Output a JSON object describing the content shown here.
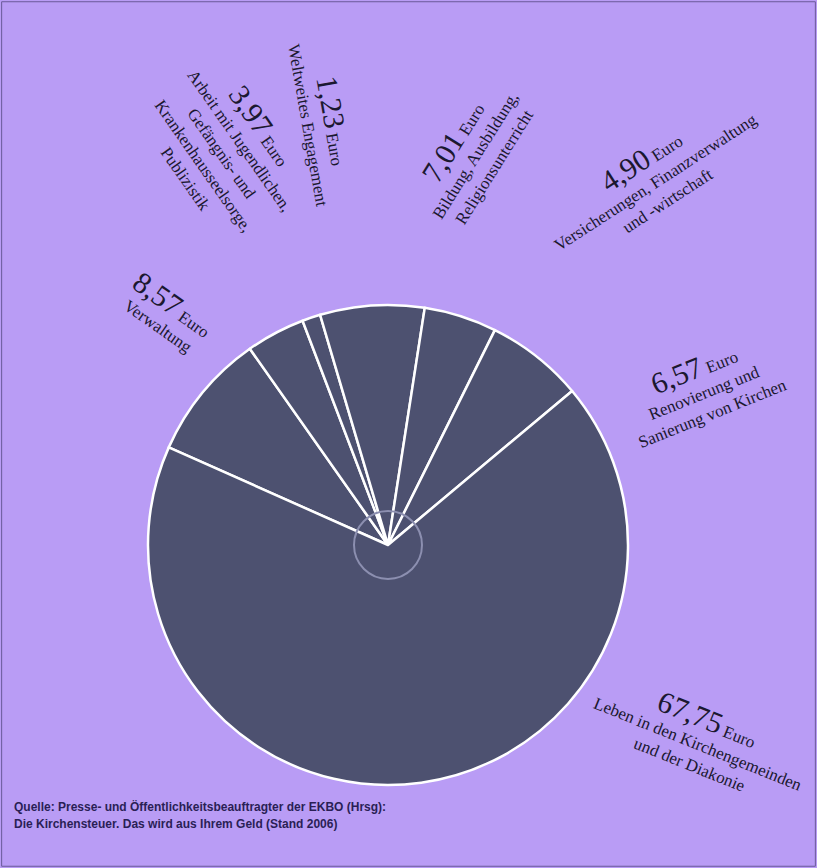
{
  "chart_data": {
    "type": "pie",
    "categories": [
      "Verwaltung",
      "Arbeit mit Jugendlichen, Gefängnis- und Krankenhausseelsorge, Publizistik",
      "Weltweites Engagement",
      "Bildung, Ausbildung, Religionsunterricht",
      "Versicherungen, Finanzverwaltung und -wirtschaft",
      "Renovierung und Sanierung von Kirchen",
      "Leben in den Kirchengemeinden und der Diakonie"
    ],
    "values": [
      8.57,
      3.97,
      1.23,
      7.01,
      4.9,
      6.57,
      67.75
    ],
    "value_labels": [
      "8,57 Euro",
      "3,97 Euro",
      "1,23 Euro",
      "7,01 Euro",
      "4,90 Euro",
      "6,57 Euro",
      "67,75 Euro"
    ],
    "data_labels": true,
    "color": "#4d5170",
    "source": [
      "Quelle: Presse- und Öffentlichkeitsbeauftragter der EKBO (Hrsg):",
      "Die Kirchensteuer. Das wird aus Ihrem Geld (Stand 2006)"
    ]
  }
}
